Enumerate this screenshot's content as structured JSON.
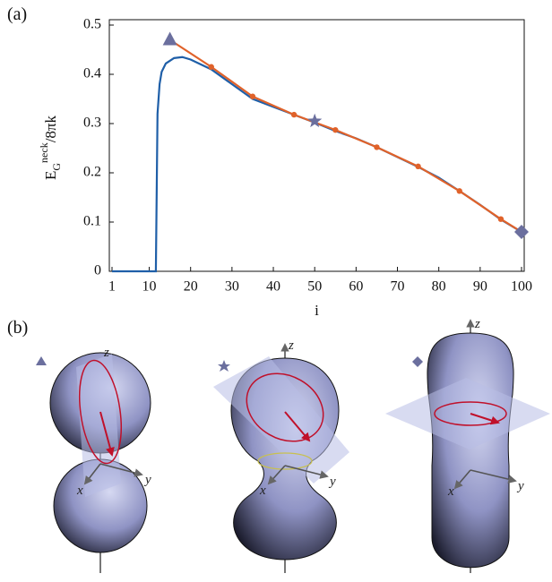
{
  "chart_data": {
    "type": "line",
    "panel_label": "(a)",
    "x_label": "i",
    "y_label": {
      "base": "E",
      "sub": "G",
      "sup": "neck",
      "tail": "/8πk"
    },
    "xlim": [
      1,
      100
    ],
    "ylim": [
      0,
      0.5
    ],
    "xticks": [
      1,
      10,
      20,
      30,
      40,
      50,
      60,
      70,
      80,
      90,
      100
    ],
    "yticks": [
      0,
      0.1,
      0.2,
      0.3,
      0.4,
      0.5
    ],
    "series": [
      {
        "color": "#1f5fa8",
        "marker": "none",
        "x": [
          1,
          11,
          11.6,
          12,
          12.5,
          13,
          14,
          16,
          18,
          20,
          25,
          30,
          35,
          40,
          45,
          50,
          55,
          60,
          65,
          70,
          75,
          80,
          85,
          90,
          95,
          100
        ],
        "values": [
          0,
          0,
          0,
          0.32,
          0.38,
          0.405,
          0.422,
          0.433,
          0.435,
          0.43,
          0.41,
          0.38,
          0.35,
          0.334,
          0.318,
          0.302,
          0.285,
          0.27,
          0.252,
          0.232,
          0.212,
          0.19,
          0.163,
          0.135,
          0.105,
          0.08
        ]
      },
      {
        "color": "#e0622a",
        "marker": "dot",
        "x": [
          15,
          25,
          35,
          45,
          55,
          65,
          75,
          85,
          95,
          100
        ],
        "values": [
          0.47,
          0.415,
          0.355,
          0.318,
          0.287,
          0.252,
          0.213,
          0.163,
          0.106,
          0.08
        ]
      }
    ],
    "markers": [
      {
        "shape": "triangle",
        "x": 15,
        "y": 0.47
      },
      {
        "shape": "star",
        "x": 50,
        "y": 0.305
      },
      {
        "shape": "diamond",
        "x": 100,
        "y": 0.08
      }
    ],
    "marker_color": "#6b6f9e"
  },
  "panel_b": {
    "panel_label": "(b)",
    "figures": [
      {
        "axes": {
          "x": "x",
          "y": "y",
          "z": "z"
        }
      },
      {
        "axes": {
          "x": "x",
          "y": "y",
          "z": "z"
        }
      },
      {
        "axes": {
          "x": "x",
          "y": "y",
          "z": "z"
        }
      }
    ]
  }
}
